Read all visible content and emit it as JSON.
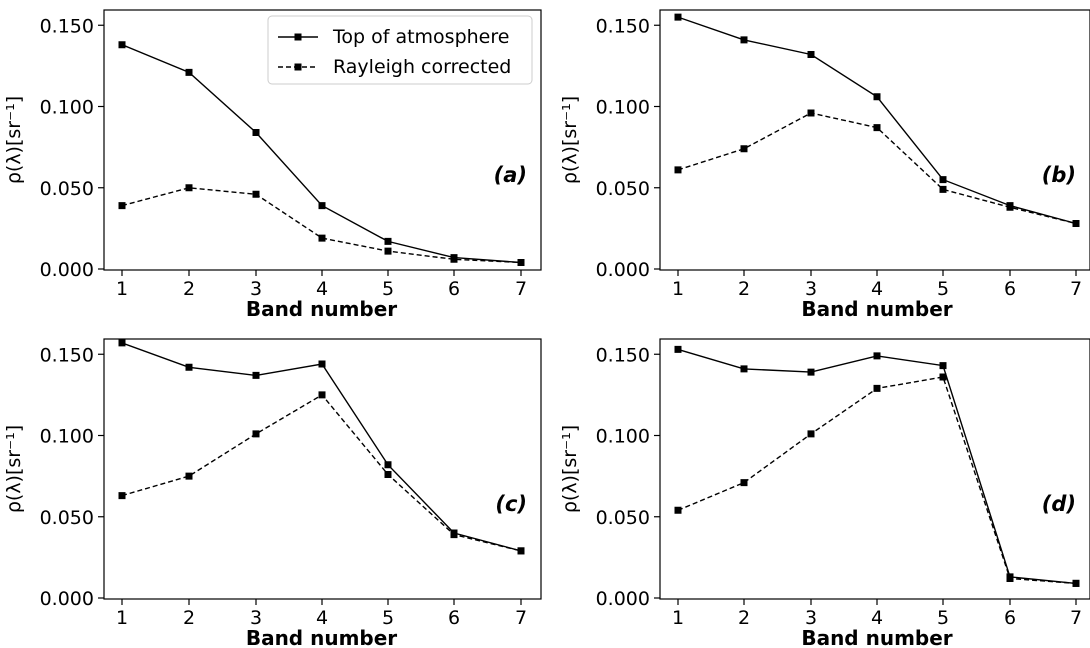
{
  "chart_data": [
    {
      "type": "line",
      "panel_label": "(a)",
      "x": [
        1,
        2,
        3,
        4,
        5,
        6,
        7
      ],
      "xlabel": "Band number",
      "ylabel": "ρ(λ)[sr⁻¹]",
      "ylim": [
        0,
        0.16
      ],
      "yticks": [
        "0.000",
        "0.050",
        "0.100",
        "0.150"
      ],
      "grid": false,
      "legend": "upper-right",
      "series": [
        {
          "name": "Top of atmosphere",
          "style": "solid",
          "values": [
            0.138,
            0.121,
            0.084,
            0.039,
            0.017,
            0.007,
            0.004
          ]
        },
        {
          "name": "Rayleigh corrected",
          "style": "dashed",
          "values": [
            0.039,
            0.05,
            0.046,
            0.019,
            0.011,
            0.006,
            0.004
          ]
        }
      ]
    },
    {
      "type": "line",
      "panel_label": "(b)",
      "x": [
        1,
        2,
        3,
        4,
        5,
        6,
        7
      ],
      "xlabel": "Band number",
      "ylabel": "ρ(λ)[sr⁻¹]",
      "ylim": [
        0,
        0.16
      ],
      "yticks": [
        "0.000",
        "0.050",
        "0.100",
        "0.150"
      ],
      "grid": false,
      "series": [
        {
          "style": "solid",
          "values": [
            0.155,
            0.141,
            0.132,
            0.106,
            0.055,
            0.039,
            0.028
          ]
        },
        {
          "style": "dashed",
          "values": [
            0.061,
            0.074,
            0.096,
            0.087,
            0.049,
            0.038,
            0.028
          ]
        }
      ]
    },
    {
      "type": "line",
      "panel_label": "(c)",
      "x": [
        1,
        2,
        3,
        4,
        5,
        6,
        7
      ],
      "xlabel": "Band number",
      "ylabel": "ρ(λ)[sr⁻¹]",
      "ylim": [
        0,
        0.16
      ],
      "yticks": [
        "0.000",
        "0.050",
        "0.100",
        "0.150"
      ],
      "grid": false,
      "series": [
        {
          "style": "solid",
          "values": [
            0.157,
            0.142,
            0.137,
            0.144,
            0.082,
            0.04,
            0.029
          ]
        },
        {
          "style": "dashed",
          "values": [
            0.063,
            0.075,
            0.101,
            0.125,
            0.076,
            0.039,
            0.029
          ]
        }
      ]
    },
    {
      "type": "line",
      "panel_label": "(d)",
      "x": [
        1,
        2,
        3,
        4,
        5,
        6,
        7
      ],
      "xlabel": "Band number",
      "ylabel": "ρ(λ)[sr⁻¹]",
      "ylim": [
        0,
        0.16
      ],
      "yticks": [
        "0.000",
        "0.050",
        "0.100",
        "0.150"
      ],
      "grid": false,
      "series": [
        {
          "style": "solid",
          "values": [
            0.153,
            0.141,
            0.139,
            0.149,
            0.143,
            0.013,
            0.009
          ]
        },
        {
          "style": "dashed",
          "values": [
            0.054,
            0.071,
            0.101,
            0.129,
            0.136,
            0.012,
            0.009
          ]
        }
      ]
    }
  ]
}
